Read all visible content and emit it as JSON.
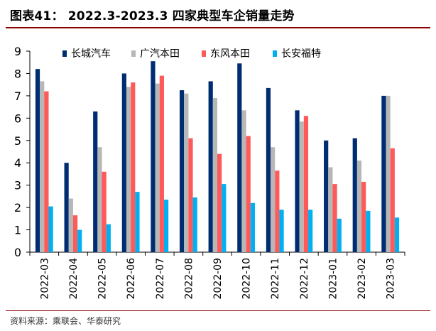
{
  "figure": {
    "title": "图表41： 2022.3-2023.3 四家典型车企销量走势",
    "source": "资料来源：乘联会、华泰研究"
  },
  "chart_data": {
    "type": "bar",
    "title": "",
    "xlabel": "",
    "ylabel": "",
    "ylim": [
      0,
      9
    ],
    "yticks": [
      0,
      1,
      2,
      3,
      4,
      5,
      6,
      7,
      8,
      9
    ],
    "grid": false,
    "legend_position": "top",
    "categories": [
      "2022-03",
      "2022-04",
      "2022-05",
      "2022-06",
      "2022-07",
      "2022-08",
      "2022-09",
      "2022-10",
      "2022-11",
      "2022-12",
      "2023-01",
      "2023-02",
      "2023-03"
    ],
    "series": [
      {
        "name": "长城汽车",
        "color": "#002d72",
        "values": [
          8.2,
          4.0,
          6.3,
          8.0,
          8.55,
          7.25,
          7.65,
          8.45,
          7.35,
          6.35,
          5.0,
          5.1,
          7.0
        ]
      },
      {
        "name": "广汽本田",
        "color": "#b7b7b7",
        "values": [
          7.65,
          2.4,
          4.7,
          7.4,
          7.55,
          7.1,
          6.9,
          6.35,
          4.7,
          5.85,
          3.8,
          4.1,
          7.0
        ]
      },
      {
        "name": "东风本田",
        "color": "#ff5a5a",
        "values": [
          7.2,
          1.65,
          3.6,
          7.6,
          7.9,
          5.1,
          4.4,
          5.2,
          3.65,
          6.1,
          3.05,
          3.15,
          4.65
        ]
      },
      {
        "name": "长安福特",
        "color": "#00b0f0",
        "values": [
          2.05,
          1.0,
          1.25,
          2.7,
          2.35,
          2.45,
          3.05,
          2.2,
          1.9,
          1.9,
          1.5,
          1.85,
          1.55
        ]
      }
    ]
  }
}
